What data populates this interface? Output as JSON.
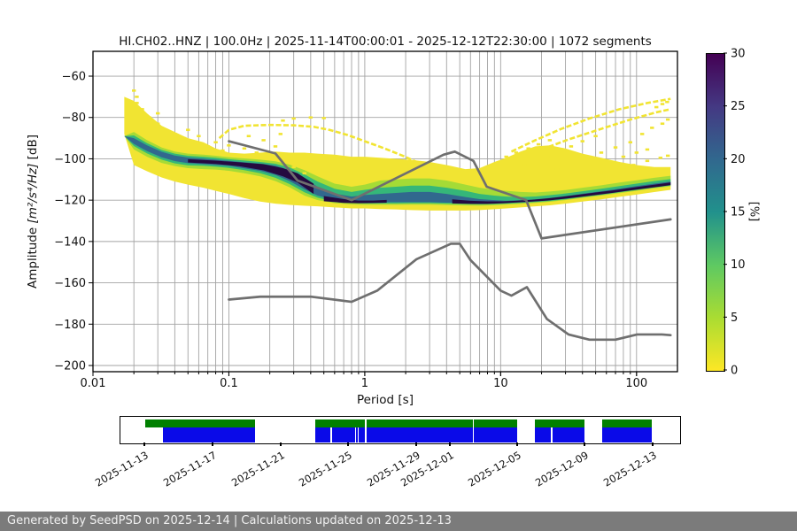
{
  "title": "HI.CH02..HNZ | 100.0Hz | 2025-11-14T00:00:01 - 2025-12-12T22:30:00 | 1072 segments",
  "footer": {
    "text": "Generated by SeedPSD on 2025-12-14 | Calculations updated on 2025-12-13"
  },
  "axis": {
    "xlabel": "Period [s]",
    "ylabel_amplitude": "Amplitude ",
    "ylabel_units": "[m²/s⁴/Hz]",
    "ylabel_db": " [dB]"
  },
  "colorbar": {
    "label": "[%]",
    "min": 0,
    "max": 30,
    "ticks": [
      0,
      5,
      10,
      15,
      20,
      25,
      30
    ],
    "colormap": "viridis_r",
    "gradient_bottom_to_top": [
      "#fde725",
      "#aadc32",
      "#5ec962",
      "#21918c",
      "#31688e",
      "#443983",
      "#440154"
    ]
  },
  "chart_data": {
    "type": "heatmap",
    "title": "HI.CH02..HNZ | 100.0Hz | 2025-11-14T00:00:01 - 2025-12-12T22:30:00 | 1072 segments",
    "xlabel": "Period [s]",
    "ylabel": "Amplitude [m²/s⁴/Hz] [dB]",
    "xscale": "log",
    "grid": true,
    "grid_color": "#a3a3a3",
    "xlim": [
      0.01,
      200
    ],
    "ylim": [
      -203,
      -48
    ],
    "xticks": [
      {
        "v": 0.01,
        "label": "0.01"
      },
      {
        "v": 0.1,
        "label": "0.1"
      },
      {
        "v": 1,
        "label": "1"
      },
      {
        "v": 10,
        "label": "10"
      },
      {
        "v": 100,
        "label": "100"
      }
    ],
    "yticks": [
      {
        "v": -60,
        "label": "−60"
      },
      {
        "v": -80,
        "label": "−80"
      },
      {
        "v": -100,
        "label": "−100"
      },
      {
        "v": -120,
        "label": "−120"
      },
      {
        "v": -140,
        "label": "−140"
      },
      {
        "v": -160,
        "label": "−160"
      },
      {
        "v": -180,
        "label": "−180"
      },
      {
        "v": -200,
        "label": "−200"
      }
    ],
    "palette": {
      "p0": "#f1e432",
      "p5": "#a5db36",
      "p12": "#35b779",
      "p20": "#31688e",
      "p30": "#250a40"
    },
    "ppsd_band_columns": [
      "period_s",
      "y_top",
      "y_bot",
      "lg_top",
      "lg_bot",
      "g_top",
      "g_bot",
      "c_top",
      "c_bot"
    ],
    "ppsd_band": [
      [
        0.017,
        -70,
        -88,
        -89,
        -89,
        -89,
        -89,
        -89,
        -89
      ],
      [
        0.02,
        -72,
        -103,
        -87,
        -95.5,
        -88.7,
        -93.8,
        -90,
        -92.8
      ],
      [
        0.025,
        -78,
        -106,
        -91,
        -99,
        -92.4,
        -97.4,
        -93.5,
        -96.3
      ],
      [
        0.032,
        -84,
        -109,
        -94.5,
        -102,
        -95.7,
        -100.4,
        -96.6,
        -99.3
      ],
      [
        0.04,
        -87,
        -111,
        -96.5,
        -103.5,
        -97.5,
        -102.2,
        -98.4,
        -101.1
      ],
      [
        0.05,
        -90,
        -112.5,
        -97.5,
        -104.5,
        -98.5,
        -103.2,
        -99.4,
        -102.1
      ],
      [
        0.065,
        -92,
        -114,
        -98,
        -105,
        -99,
        -103.4,
        -99.9,
        -102.6
      ],
      [
        0.08,
        -95,
        -115.5,
        -98.5,
        -105.2,
        -99.5,
        -103.8,
        -100.4,
        -103
      ],
      [
        0.1,
        -97,
        -117,
        -99.2,
        -105.8,
        -100.2,
        -104.4,
        -101,
        -103.4
      ],
      [
        0.13,
        -97.5,
        -119,
        -99.8,
        -107,
        -100.8,
        -105.5,
        -101.7,
        -104.6
      ],
      [
        0.17,
        -97,
        -120.7,
        -100.4,
        -108.5,
        -101.5,
        -107,
        -102.3,
        -105.8
      ],
      [
        0.22,
        -96.5,
        -121.7,
        -101.2,
        -110.8,
        -102.4,
        -109.2,
        -103.3,
        -107.8
      ],
      [
        0.28,
        -97,
        -122.3,
        -102.8,
        -113.8,
        -104.2,
        -112.2,
        -105.5,
        -110.8
      ],
      [
        0.36,
        -97,
        -122.7,
        -105.5,
        -117.8,
        -107.5,
        -116.2,
        -109.5,
        -114.8
      ],
      [
        0.45,
        -97.5,
        -123,
        -108.5,
        -120,
        -111,
        -118.8,
        -113.5,
        -117.8
      ],
      [
        0.6,
        -98,
        -123.5,
        -112,
        -121.5,
        -114.5,
        -120.8,
        -116.8,
        -120
      ],
      [
        0.8,
        -99,
        -124,
        -113.5,
        -122.1,
        -116,
        -121.4,
        -118.3,
        -120.8
      ],
      [
        1,
        -99,
        -124,
        -112.5,
        -122.3,
        -115,
        -121.6,
        -117.5,
        -121
      ],
      [
        1.3,
        -99.5,
        -124.3,
        -110.5,
        -122.3,
        -114,
        -121.6,
        -117,
        -121
      ],
      [
        1.7,
        -100,
        -124.5,
        -110,
        -122.3,
        -113.5,
        -121.6,
        -116.5,
        -121
      ],
      [
        2.2,
        -100.5,
        -124.8,
        -109.5,
        -122.2,
        -113,
        -121.5,
        -116,
        -121
      ],
      [
        3,
        -101.5,
        -125,
        -109.5,
        -122.2,
        -113,
        -121.5,
        -116,
        -121
      ],
      [
        4,
        -103,
        -125,
        -110.5,
        -122.4,
        -114,
        -121.7,
        -117,
        -121.2
      ],
      [
        5.5,
        -105,
        -125,
        -112.5,
        -122.6,
        -115.5,
        -121.9,
        -118.5,
        -121.4
      ],
      [
        7,
        -104.5,
        -124.8,
        -114,
        -122.7,
        -117,
        -122,
        -119.5,
        -121.5
      ],
      [
        9,
        -101.5,
        -124.4,
        -115,
        -122.5,
        -117.8,
        -121.9,
        -120,
        -121.4
      ],
      [
        11,
        -99.5,
        -124,
        -115.5,
        -122.2,
        -118.3,
        -121.7,
        -120.3,
        -121.3
      ],
      [
        14,
        -96.5,
        -123.5,
        -116,
        -121.8,
        -118.5,
        -121.3,
        -120,
        -121
      ],
      [
        18,
        -94,
        -123,
        -116.3,
        -121.4,
        -118.2,
        -120.9,
        -119.6,
        -120.6
      ],
      [
        23,
        -93.5,
        -122.5,
        -115.8,
        -120.8,
        -117.6,
        -120.4,
        -118.9,
        -120
      ],
      [
        30,
        -95,
        -121.7,
        -115.1,
        -120,
        -116.8,
        -119.6,
        -118,
        -119.2
      ],
      [
        40,
        -97.5,
        -120.7,
        -114,
        -118.9,
        -115.7,
        -118.5,
        -116.9,
        -118.1
      ],
      [
        55,
        -99.5,
        -119.6,
        -112.8,
        -117.8,
        -114.5,
        -117.4,
        -115.7,
        -117
      ],
      [
        75,
        -101.5,
        -118.4,
        -111.5,
        -116.6,
        -113.2,
        -116.2,
        -114.4,
        -115.8
      ],
      [
        100,
        -103,
        -117.3,
        -110.4,
        -115.5,
        -112,
        -115.1,
        -113.2,
        -114.7
      ],
      [
        135,
        -104,
        -116.1,
        -109.2,
        -114.3,
        -110.8,
        -113.9,
        -112,
        -113.5
      ],
      [
        178,
        -104,
        -115,
        -108.2,
        -113.3,
        -109.8,
        -112.9,
        -111,
        -112.5
      ]
    ],
    "mode_ridge_segments": [
      [
        [
          0.05,
          -100.2,
          -101.8
        ],
        [
          0.08,
          -100.9,
          -102.5
        ],
        [
          0.12,
          -101.7,
          -103.6
        ],
        [
          0.18,
          -102.6,
          -105.6
        ],
        [
          0.25,
          -104.5,
          -108.5
        ],
        [
          0.32,
          -107,
          -111.5
        ],
        [
          0.42,
          -112,
          -117
        ]
      ],
      [
        [
          0.5,
          -118,
          -120.5
        ],
        [
          0.7,
          -119.5,
          -121.3
        ],
        [
          0.9,
          -120.2,
          -121.5
        ],
        [
          1.15,
          -120.2,
          -121.4
        ],
        [
          1.45,
          -119.9,
          -121.2
        ]
      ],
      [
        [
          4.4,
          -119.6,
          -121.6
        ],
        [
          6,
          -120.3,
          -121.8
        ],
        [
          8,
          -120.6,
          -121.8
        ],
        [
          10.5,
          -120.6,
          -121.5
        ],
        [
          13,
          -120.3,
          -121.1
        ],
        [
          17,
          -119.8,
          -120.7
        ],
        [
          22,
          -119.2,
          -120.2
        ],
        [
          29,
          -118.3,
          -119.4
        ],
        [
          38,
          -117.3,
          -118.5
        ],
        [
          50,
          -116.3,
          -117.5
        ],
        [
          68,
          -115.2,
          -116.4
        ],
        [
          90,
          -114.1,
          -115.3
        ],
        [
          120,
          -113,
          -114.2
        ],
        [
          150,
          -112.1,
          -113.4
        ],
        [
          178,
          -111.4,
          -112.7
        ]
      ]
    ],
    "outlier_arcs": {
      "short_period_dome": [
        [
          0.085,
          -90
        ],
        [
          0.1,
          -86
        ],
        [
          0.13,
          -84
        ],
        [
          0.2,
          -83.6
        ],
        [
          0.3,
          -83.8
        ],
        [
          0.42,
          -84.5
        ],
        [
          0.55,
          -86
        ],
        [
          0.75,
          -88.5
        ],
        [
          1,
          -91.5
        ],
        [
          1.4,
          -95
        ],
        [
          1.9,
          -98.5
        ],
        [
          2.6,
          -102.5
        ],
        [
          3.5,
          -106
        ]
      ],
      "long_period_streak_1": [
        [
          12,
          -96.5
        ],
        [
          18,
          -91
        ],
        [
          28,
          -85.5
        ],
        [
          45,
          -80.5
        ],
        [
          75,
          -76
        ],
        [
          120,
          -73
        ],
        [
          178,
          -71
        ]
      ],
      "long_period_streak_2": [
        [
          20,
          -95.5
        ],
        [
          32,
          -90.5
        ],
        [
          55,
          -85.5
        ],
        [
          90,
          -81
        ],
        [
          140,
          -77.5
        ],
        [
          178,
          -76
        ]
      ]
    },
    "outlier_points": [
      [
        0.02,
        -67
      ],
      [
        0.021,
        -70
      ],
      [
        0.021,
        -73
      ],
      [
        0.023,
        -76
      ],
      [
        0.026,
        -80
      ],
      [
        0.03,
        -83
      ],
      [
        0.034,
        -86
      ],
      [
        0.04,
        -88
      ],
      [
        0.047,
        -90
      ],
      [
        0.055,
        -92
      ],
      [
        0.07,
        -94
      ],
      [
        0.09,
        -96
      ],
      [
        0.03,
        -78
      ],
      [
        0.025,
        -84
      ],
      [
        0.035,
        -90
      ],
      [
        0.05,
        -86
      ],
      [
        0.06,
        -89
      ],
      [
        0.08,
        -92
      ],
      [
        0.1,
        -93.5
      ],
      [
        0.13,
        -95
      ],
      [
        0.16,
        -97
      ],
      [
        0.2,
        -99
      ],
      [
        0.25,
        -101
      ],
      [
        0.3,
        -104
      ],
      [
        0.36,
        -107
      ],
      [
        0.22,
        -94
      ],
      [
        0.3,
        -80.5
      ],
      [
        0.4,
        -80
      ],
      [
        0.5,
        -80.3
      ],
      [
        0.25,
        -81.5
      ],
      [
        0.14,
        -89
      ],
      [
        0.18,
        -91
      ],
      [
        0.24,
        -88
      ],
      [
        11,
        -99
      ],
      [
        13,
        -97
      ],
      [
        16,
        -95
      ],
      [
        19,
        -93
      ],
      [
        23,
        -91
      ],
      [
        15,
        -103
      ],
      [
        18,
        -101
      ],
      [
        22,
        -99
      ],
      [
        27,
        -96.5
      ],
      [
        33,
        -94
      ],
      [
        40,
        -91.5
      ],
      [
        50,
        -89
      ],
      [
        26,
        -105
      ],
      [
        32,
        -103
      ],
      [
        40,
        -100
      ],
      [
        55,
        -97
      ],
      [
        70,
        -94.5
      ],
      [
        90,
        -92
      ],
      [
        20,
        -108
      ],
      [
        25,
        -107
      ],
      [
        30,
        -111
      ],
      [
        45,
        -104
      ],
      [
        60,
        -101.5
      ],
      [
        80,
        -99
      ],
      [
        100,
        -97
      ],
      [
        120,
        -95.5
      ],
      [
        60,
        -107
      ],
      [
        75,
        -105
      ],
      [
        95,
        -103
      ],
      [
        120,
        -101
      ],
      [
        150,
        -99.5
      ],
      [
        170,
        -98.5
      ],
      [
        140,
        -75
      ],
      [
        155,
        -73.5
      ],
      [
        168,
        -72.5
      ],
      [
        12,
        -108
      ],
      [
        14,
        -110
      ],
      [
        35,
        -108
      ],
      [
        50,
        -106
      ],
      [
        110,
        -88
      ],
      [
        130,
        -85
      ],
      [
        155,
        -83
      ],
      [
        170,
        -81
      ]
    ],
    "noise_models": {
      "color": "#6f6f6f",
      "nhnm": [
        [
          0.1,
          -91.5
        ],
        [
          0.22,
          -97.4
        ],
        [
          0.32,
          -110.5
        ],
        [
          0.8,
          -120
        ],
        [
          3.8,
          -98
        ],
        [
          4.6,
          -96.5
        ],
        [
          6.3,
          -101
        ],
        [
          7.9,
          -113.5
        ],
        [
          15.4,
          -120
        ],
        [
          20,
          -138.5
        ],
        [
          178,
          -129.3
        ]
      ],
      "nlnm": [
        [
          0.1,
          -168.1
        ],
        [
          0.17,
          -166.7
        ],
        [
          0.4,
          -166.7
        ],
        [
          0.8,
          -169.2
        ],
        [
          1.24,
          -163.7
        ],
        [
          2.4,
          -148.6
        ],
        [
          4.3,
          -141.1
        ],
        [
          5,
          -141.1
        ],
        [
          6,
          -149
        ],
        [
          10,
          -163.8
        ],
        [
          12,
          -166.2
        ],
        [
          15.6,
          -162.1
        ],
        [
          21.9,
          -177.5
        ],
        [
          31.6,
          -185
        ],
        [
          45,
          -187.5
        ],
        [
          70,
          -187.5
        ],
        [
          101,
          -185
        ],
        [
          154,
          -185
        ],
        [
          178,
          -185.3
        ]
      ]
    }
  },
  "timeline": {
    "green_color": "#008000",
    "blue_color": "#0a0ae8",
    "green_segments_pct": [
      [
        4.43,
        24.05
      ],
      [
        34.81,
        43.75
      ],
      [
        43.91,
        62.97
      ],
      [
        63.21,
        70.89
      ],
      [
        74.05,
        82.91
      ],
      [
        86.08,
        94.94
      ]
    ],
    "blue_segments_pct": [
      [
        7.59,
        24.05
      ],
      [
        34.81,
        37.58
      ],
      [
        37.82,
        41.93
      ],
      [
        42.09,
        42.41
      ],
      [
        42.64,
        43.75
      ],
      [
        43.91,
        62.97
      ],
      [
        63.21,
        70.89
      ],
      [
        74.05,
        76.9
      ],
      [
        77.14,
        82.91
      ],
      [
        86.08,
        94.94
      ]
    ],
    "ticks": [
      {
        "pct": 4.43,
        "label": "2025-11-13"
      },
      {
        "pct": 16.61,
        "label": "2025-11-17"
      },
      {
        "pct": 28.8,
        "label": "2025-11-21"
      },
      {
        "pct": 40.82,
        "label": "2025-11-25"
      },
      {
        "pct": 53.01,
        "label": "2025-11-29"
      },
      {
        "pct": 59.02,
        "label": "2025-12-01"
      },
      {
        "pct": 71.04,
        "label": "2025-12-05"
      },
      {
        "pct": 83.07,
        "label": "2025-12-09"
      },
      {
        "pct": 95.25,
        "label": "2025-12-13"
      }
    ]
  }
}
